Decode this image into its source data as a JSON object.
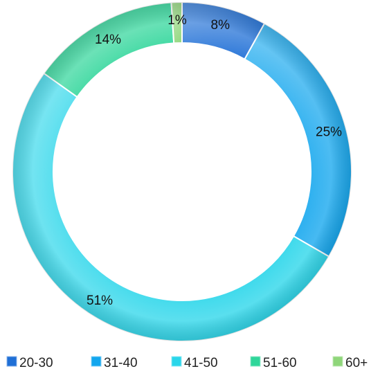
{
  "chart_data": {
    "type": "pie",
    "subtype": "donut",
    "categories": [
      "20-30",
      "31-40",
      "41-50",
      "51-60",
      "60+"
    ],
    "values": [
      8,
      25,
      51,
      14,
      1
    ],
    "labels": [
      "8%",
      "25%",
      "51%",
      "14%",
      "1%"
    ],
    "colors": [
      "#1f6fd6",
      "#12a6ee",
      "#2ad6ea",
      "#2fd69a",
      "#8fd67a"
    ],
    "legend_position": "bottom",
    "title": ""
  }
}
